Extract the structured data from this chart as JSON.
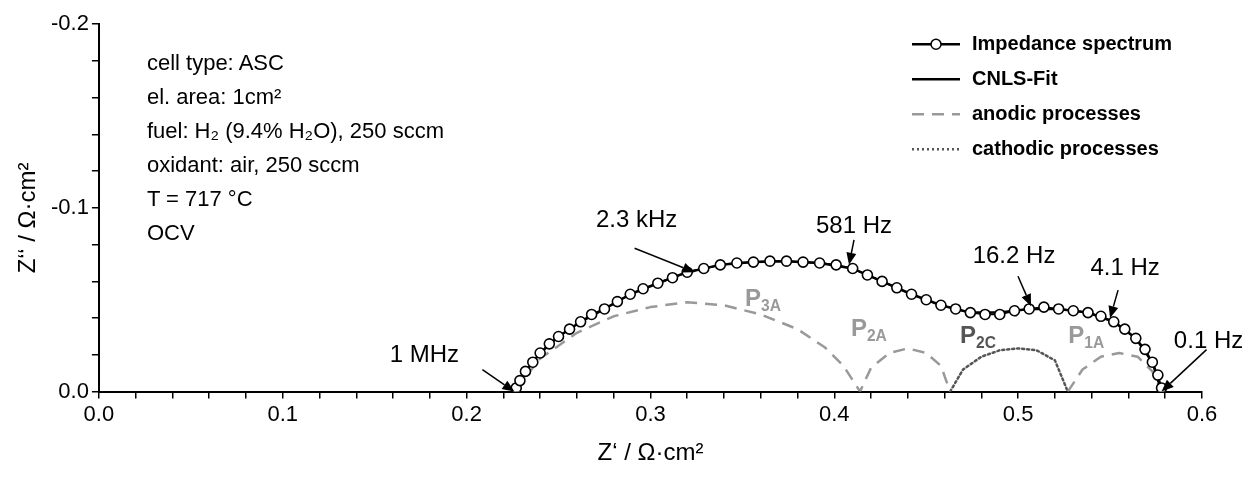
{
  "chart_data": {
    "type": "line",
    "xlabel": "Z‘ / Ω·cm²",
    "ylabel": "Z‘‘ / Ω·cm²",
    "xlim": [
      0,
      0.6
    ],
    "ylim": [
      0,
      -0.2
    ],
    "xticks": [
      {
        "value": 0,
        "label": "0.0"
      },
      {
        "value": 0.02,
        "label": null
      },
      {
        "value": 0.04,
        "label": null
      },
      {
        "value": 0.06,
        "label": null
      },
      {
        "value": 0.08,
        "label": null
      },
      0.1,
      {
        "value": 0.12,
        "label": null
      },
      {
        "value": 0.14,
        "label": null
      },
      {
        "value": 0.16,
        "label": null
      },
      {
        "value": 0.18,
        "label": null
      },
      0.2,
      {
        "value": 0.22,
        "label": null
      },
      {
        "value": 0.24,
        "label": null
      },
      {
        "value": 0.26,
        "label": null
      },
      {
        "value": 0.28,
        "label": null
      },
      0.3,
      {
        "value": 0.32,
        "label": null
      },
      {
        "value": 0.34,
        "label": null
      },
      {
        "value": 0.36,
        "label": null
      },
      {
        "value": 0.38,
        "label": null
      },
      0.4,
      {
        "value": 0.42,
        "label": null
      },
      {
        "value": 0.44,
        "label": null
      },
      {
        "value": 0.46,
        "label": null
      },
      {
        "value": 0.48,
        "label": null
      },
      0.5,
      {
        "value": 0.52,
        "label": null
      },
      {
        "value": 0.54,
        "label": null
      },
      {
        "value": 0.56,
        "label": null
      },
      {
        "value": 0.58,
        "label": null
      },
      0.6
    ],
    "yticks": [
      {
        "value": 0,
        "label": "0.0"
      },
      {
        "value": -0.02,
        "label": null
      },
      {
        "value": -0.04,
        "label": null
      },
      {
        "value": -0.06,
        "label": null
      },
      {
        "value": -0.08,
        "label": null
      },
      -0.1,
      {
        "value": -0.12,
        "label": null
      },
      {
        "value": -0.14,
        "label": null
      },
      {
        "value": -0.16,
        "label": null
      },
      {
        "value": -0.18,
        "label": null
      },
      -0.2
    ],
    "legend": "top right",
    "series": [
      {
        "name": "Impedance spectrum",
        "color": "#000000",
        "marker": "circle",
        "x": [
          0.227,
          0.229,
          0.232,
          0.236,
          0.24,
          0.245,
          0.25,
          0.256,
          0.262,
          0.268,
          0.275,
          0.282,
          0.289,
          0.296,
          0.304,
          0.312,
          0.32,
          0.329,
          0.338,
          0.347,
          0.356,
          0.365,
          0.374,
          0.383,
          0.392,
          0.401,
          0.41,
          0.418,
          0.426,
          0.434,
          0.442,
          0.45,
          0.458,
          0.466,
          0.474,
          0.482,
          0.49,
          0.498,
          0.506,
          0.514,
          0.522,
          0.53,
          0.538,
          0.545,
          0.552,
          0.558,
          0.564,
          0.569,
          0.573,
          0.576,
          0.578
        ],
        "values": [
          -0.002,
          -0.006,
          -0.011,
          -0.016,
          -0.021,
          -0.026,
          -0.03,
          -0.034,
          -0.038,
          -0.042,
          -0.045,
          -0.049,
          -0.053,
          -0.056,
          -0.059,
          -0.062,
          -0.065,
          -0.067,
          -0.069,
          -0.07,
          -0.0705,
          -0.071,
          -0.071,
          -0.0705,
          -0.07,
          -0.069,
          -0.067,
          -0.0635,
          -0.06,
          -0.0565,
          -0.053,
          -0.05,
          -0.047,
          -0.045,
          -0.043,
          -0.042,
          -0.042,
          -0.044,
          -0.045,
          -0.046,
          -0.045,
          -0.044,
          -0.043,
          -0.041,
          -0.038,
          -0.034,
          -0.029,
          -0.023,
          -0.016,
          -0.009,
          -0.002
        ]
      },
      {
        "name": "CNLS-Fit",
        "color": "#000000",
        "marker": "none",
        "x": [
          0.226,
          0.232,
          0.24,
          0.25,
          0.262,
          0.275,
          0.289,
          0.304,
          0.32,
          0.338,
          0.356,
          0.374,
          0.392,
          0.41,
          0.426,
          0.442,
          0.458,
          0.474,
          0.49,
          0.506,
          0.522,
          0.538,
          0.552,
          0.564,
          0.573,
          0.578
        ],
        "values": [
          0,
          -0.011,
          -0.021,
          -0.03,
          -0.038,
          -0.045,
          -0.053,
          -0.059,
          -0.065,
          -0.069,
          -0.0705,
          -0.071,
          -0.07,
          -0.067,
          -0.06,
          -0.053,
          -0.047,
          -0.043,
          -0.043,
          -0.045,
          -0.045,
          -0.043,
          -0.038,
          -0.029,
          -0.016,
          0
        ]
      },
      {
        "name": "anodic processes",
        "color": "#999999",
        "line_style": "dashed",
        "x": [
          0.226,
          0.24,
          0.26,
          0.28,
          0.3,
          0.32,
          0.34,
          0.36,
          0.38,
          0.395,
          0.405,
          0.414,
          0.42,
          0.43,
          0.44,
          0.45,
          0.458,
          0.463,
          null,
          0.527,
          0.535,
          0.545,
          0.555,
          0.565,
          0.573,
          0.578
        ],
        "values": [
          0,
          -0.018,
          -0.032,
          -0.041,
          -0.046,
          -0.0487,
          -0.047,
          -0.042,
          -0.034,
          -0.024,
          -0.014,
          0,
          -0.013,
          -0.021,
          -0.0235,
          -0.021,
          -0.014,
          0,
          null,
          0,
          -0.012,
          -0.019,
          -0.021,
          -0.019,
          -0.011,
          0
        ]
      },
      {
        "name": "cathodic processes",
        "color": "#555555",
        "line_style": "dotted",
        "x": [
          0.463,
          0.47,
          0.48,
          0.49,
          0.5,
          0.51,
          0.52,
          0.527
        ],
        "values": [
          0,
          -0.012,
          -0.019,
          -0.0225,
          -0.0235,
          -0.0225,
          -0.017,
          0
        ]
      }
    ],
    "annotations": [
      "cell type: ASC",
      "el. area: 1cm²",
      "fuel: H₂ (9.4% H₂O), 250 sccm",
      "oxidant: air, 250 sccm",
      "T = 717 °C",
      "OCV",
      "P$_{3A}$",
      "P$_{2A}$",
      "P$_{2C}$",
      "P$_{1A}$",
      {
        "text": "1 MHz",
        "x": 0.226,
        "y": 0
      },
      {
        "text": "2.3 kHz",
        "x": 0.324,
        "y": -0.065
      },
      {
        "text": "581 Hz",
        "x": 0.408,
        "y": -0.069
      },
      {
        "text": "16.2 Hz",
        "x": 0.507,
        "y": -0.0465
      },
      {
        "text": "4.1 Hz",
        "x": 0.55,
        "y": -0.04
      },
      {
        "text": "0.1 Hz",
        "x": 0.578,
        "y": 0
      }
    ]
  }
}
